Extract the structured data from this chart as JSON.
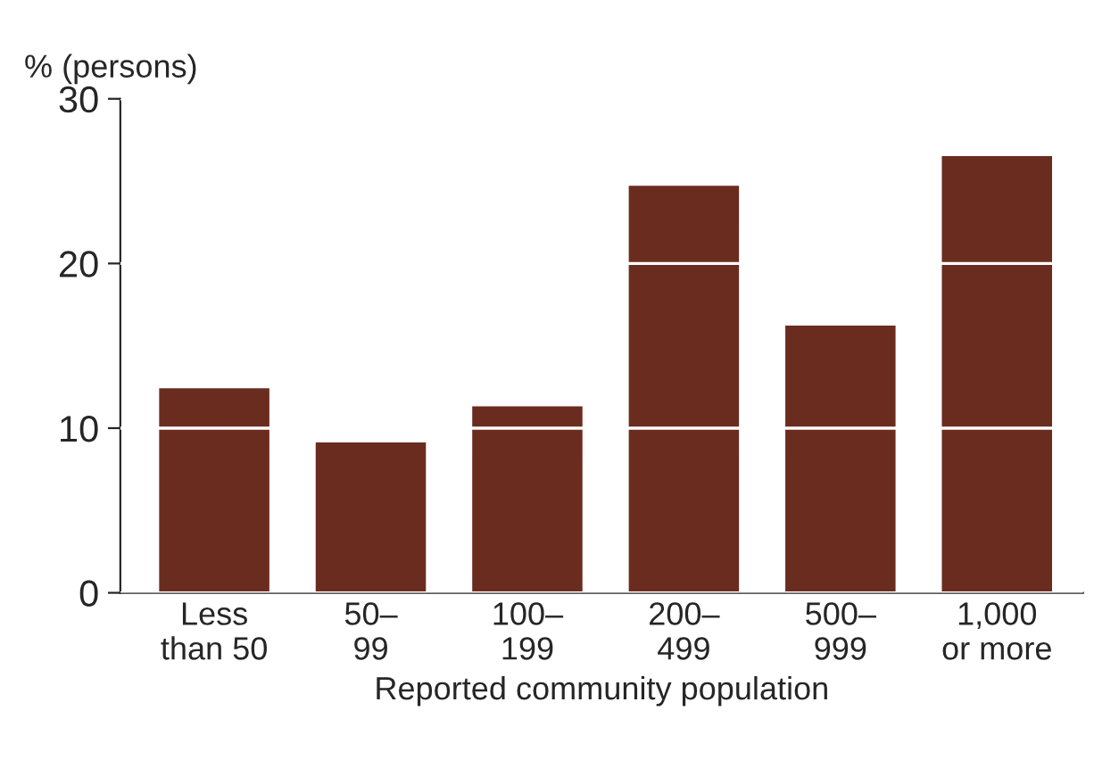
{
  "chart_data": {
    "type": "bar",
    "ylabel": "% (persons)",
    "xlabel": "Reported community population",
    "categories": [
      "Less\nthan 50",
      "50–\n99",
      "100–\n199",
      "200–\n499",
      "500–\n999",
      "1,000\nor more"
    ],
    "values": [
      12.5,
      9.2,
      11.4,
      24.8,
      16.3,
      26.6
    ],
    "color": "#6b2c20",
    "ylim": [
      0,
      30
    ],
    "yticks": [
      0,
      10,
      20,
      30
    ],
    "grid": "y",
    "legend": false
  }
}
